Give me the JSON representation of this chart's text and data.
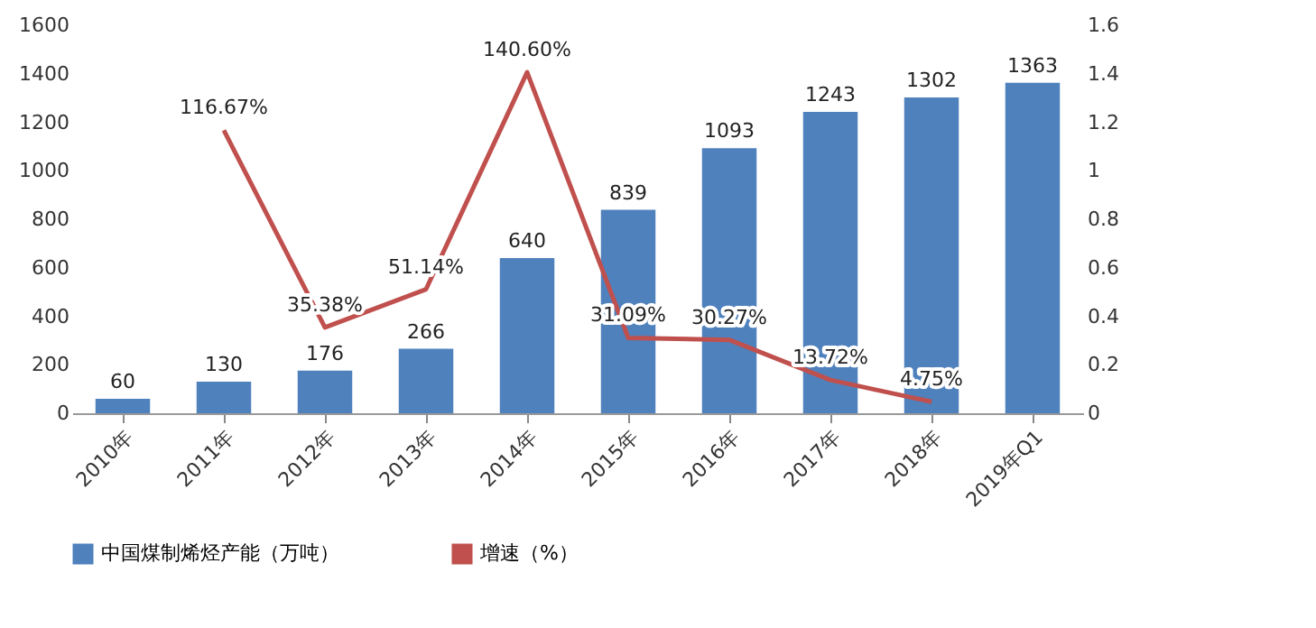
{
  "chart_data": {
    "type": "bar",
    "categories": [
      "2010年",
      "2011年",
      "2012年",
      "2013年",
      "2014年",
      "2015年",
      "2016年",
      "2017年",
      "2018年",
      "2019年Q1"
    ],
    "series": [
      {
        "name": "中国煤制烯烃产能（万吨）",
        "type": "bar",
        "color": "#4f81bd",
        "values": [
          60,
          130,
          176,
          266,
          640,
          839,
          1093,
          1243,
          1302,
          1363
        ],
        "value_labels": [
          "60",
          "130",
          "176",
          "266",
          "640",
          "839",
          "1093",
          "1243",
          "1302",
          "1363"
        ]
      },
      {
        "name": "增速（%）",
        "type": "line",
        "axis": "y2",
        "color": "#c0504d",
        "values": [
          null,
          1.1667,
          0.3538,
          0.5114,
          1.406,
          0.3109,
          0.3027,
          0.1372,
          0.0475,
          null
        ],
        "value_labels": [
          null,
          "116.67%",
          "35.38%",
          "51.14%",
          "140.60%",
          "31.09%",
          "30.27%",
          "13.72%",
          "4.75%",
          null
        ]
      }
    ],
    "ylim": [
      0,
      1600
    ],
    "yticks": [
      0,
      200,
      400,
      600,
      800,
      1000,
      1200,
      1400,
      1600
    ],
    "y2lim": [
      0,
      1.6
    ],
    "y2ticks": [
      0,
      0.2,
      0.4,
      0.6,
      0.8,
      1,
      1.2,
      1.4,
      1.6
    ],
    "legend": "bottom",
    "grid": false
  }
}
